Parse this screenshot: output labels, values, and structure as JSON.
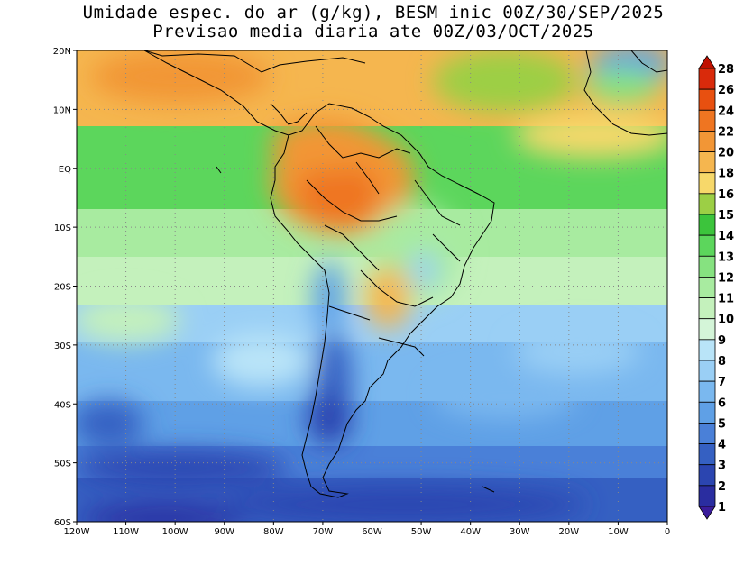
{
  "title": {
    "line1": "Umidade espec. do ar (g/kg), BESM inic 00Z/30/SEP/2025",
    "line2": "Previsao media diaria ate 00Z/03/OCT/2025"
  },
  "map": {
    "lon_range": [
      -120,
      0
    ],
    "lat_range": [
      -60,
      20
    ],
    "lat_ticks": [
      {
        "value": 20,
        "label": "20N"
      },
      {
        "value": 10,
        "label": "10N"
      },
      {
        "value": 0,
        "label": "EQ"
      },
      {
        "value": -10,
        "label": "10S"
      },
      {
        "value": -20,
        "label": "20S"
      },
      {
        "value": -30,
        "label": "30S"
      },
      {
        "value": -40,
        "label": "40S"
      },
      {
        "value": -50,
        "label": "50S"
      },
      {
        "value": -60,
        "label": "60S"
      }
    ],
    "lon_ticks": [
      {
        "value": -120,
        "label": "120W"
      },
      {
        "value": -110,
        "label": "110W"
      },
      {
        "value": -100,
        "label": "100W"
      },
      {
        "value": -90,
        "label": "90W"
      },
      {
        "value": -80,
        "label": "80W"
      },
      {
        "value": -70,
        "label": "70W"
      },
      {
        "value": -60,
        "label": "60W"
      },
      {
        "value": -50,
        "label": "50W"
      },
      {
        "value": -40,
        "label": "40W"
      },
      {
        "value": -30,
        "label": "30W"
      },
      {
        "value": -20,
        "label": "20W"
      },
      {
        "value": -10,
        "label": "10W"
      },
      {
        "value": 0,
        "label": "0"
      }
    ],
    "gridlines": "dotted"
  },
  "colorbar": {
    "levels": [
      "1",
      "2",
      "3",
      "4",
      "5",
      "6",
      "7",
      "8",
      "9",
      "10",
      "11",
      "12",
      "13",
      "14",
      "15",
      "16",
      "18",
      "20",
      "22",
      "24",
      "26",
      "28"
    ],
    "colors": [
      "#3a1c9a",
      "#2a2da0",
      "#2b45b0",
      "#3560c2",
      "#4a80d8",
      "#5fa0e6",
      "#7ab8ef",
      "#9acff5",
      "#b9e4f8",
      "#d4f5d8",
      "#c4f1bc",
      "#a8eba0",
      "#86e280",
      "#5cd65c",
      "#3cc43c",
      "#9ccf45",
      "#f7d86a",
      "#f5b64f",
      "#f29636",
      "#ef7521",
      "#e85010",
      "#d92a0b",
      "#c01000"
    ]
  },
  "chart_data": {
    "type": "heatmap",
    "variable": "Umidade espec. do ar (g/kg)",
    "lon_range": [
      -120,
      0
    ],
    "lat_range": [
      -60,
      20
    ],
    "regions": [
      {
        "area": "Amazon basin / northern South America",
        "approx_value_gkg": "18-22"
      },
      {
        "area": "Tropical Atlantic and Pacific near equator",
        "approx_value_gkg": "14-16"
      },
      {
        "area": "Central Brazil",
        "approx_value_gkg": "10-14"
      },
      {
        "area": "Southern Chile / Patagonia",
        "approx_value_gkg": "3-5"
      },
      {
        "area": "Southern Ocean south of 50S",
        "approx_value_gkg": "3-4"
      },
      {
        "area": "South Pacific 20S-40S",
        "approx_value_gkg": "7-10"
      },
      {
        "area": "South Atlantic 20S-40S",
        "approx_value_gkg": "8-11"
      },
      {
        "area": "West Africa coast",
        "approx_value_gkg": "16-20"
      }
    ]
  }
}
